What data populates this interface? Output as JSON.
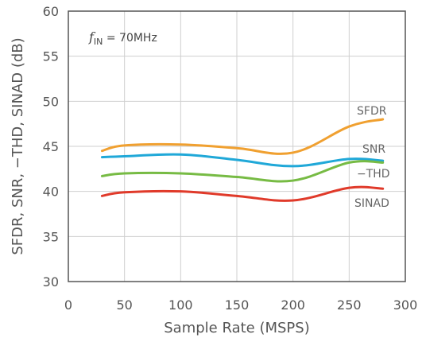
{
  "chart_data": {
    "type": "line",
    "title": "",
    "xlabel": "Sample Rate (MSPS)",
    "ylabel": "SFDR, SNR, −THD, SINAD (dB)",
    "xlim": [
      0,
      300
    ],
    "ylim": [
      30,
      60
    ],
    "xticks": [
      0,
      50,
      100,
      150,
      200,
      250,
      300
    ],
    "yticks": [
      30,
      35,
      40,
      45,
      50,
      55,
      60
    ],
    "grid": true,
    "legend": "inline labels at right",
    "annotation": {
      "italic": "f",
      "subscript": "IN",
      "text": " = 70MHz"
    },
    "series": [
      {
        "name": "SFDR",
        "color": "#f0a030",
        "x": [
          30,
          50,
          100,
          150,
          200,
          250,
          280
        ],
        "y": [
          44.5,
          45.1,
          45.2,
          44.8,
          44.3,
          47.2,
          48.0
        ]
      },
      {
        "name": "SNR",
        "color": "#20a8d8",
        "x": [
          30,
          50,
          100,
          150,
          200,
          250,
          280
        ],
        "y": [
          43.8,
          43.9,
          44.1,
          43.5,
          42.8,
          43.6,
          43.4
        ]
      },
      {
        "name": "−THD",
        "color": "#77bb44",
        "x": [
          30,
          50,
          100,
          150,
          200,
          250,
          280
        ],
        "y": [
          41.7,
          42.0,
          42.0,
          41.6,
          41.2,
          43.2,
          43.2
        ]
      },
      {
        "name": "SINAD",
        "color": "#e03a2a",
        "x": [
          30,
          50,
          100,
          150,
          200,
          250,
          280
        ],
        "y": [
          39.5,
          39.9,
          40.0,
          39.5,
          39.0,
          40.4,
          40.3
        ]
      }
    ]
  }
}
